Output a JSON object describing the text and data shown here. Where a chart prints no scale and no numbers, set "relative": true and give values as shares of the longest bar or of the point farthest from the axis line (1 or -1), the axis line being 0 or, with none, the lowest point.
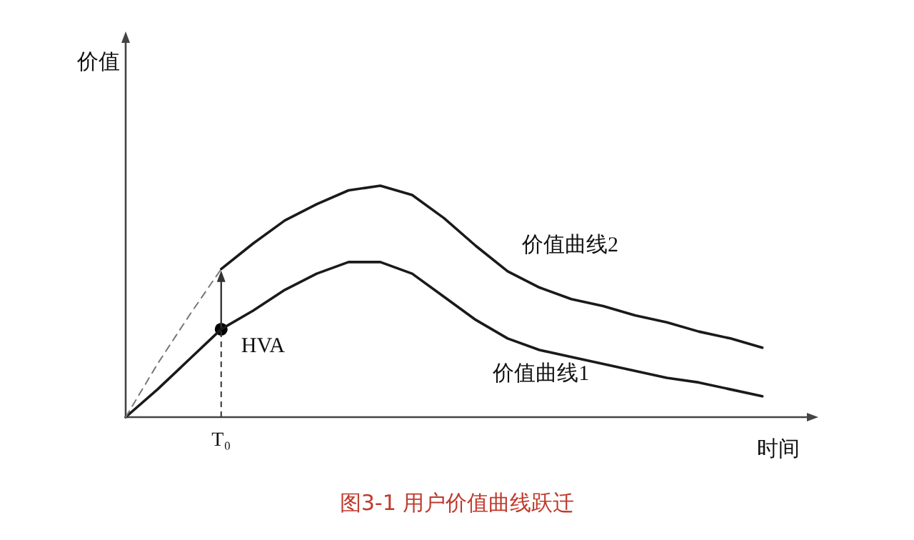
{
  "chart_data": {
    "type": "line",
    "relative": true,
    "title": "图3-1 用户价值曲线跃迁",
    "xlabel": "时间",
    "categories": [
      null,
      null,
      null,
      null,
      null,
      null,
      null,
      null,
      null,
      null,
      null,
      null,
      null,
      null,
      null,
      null,
      null,
      null,
      null,
      null,
      null
    ],
    "series": [
      {
        "name": "价值曲线1",
        "color": "#1a1a1a",
        "line_style": "solid",
        "values": [
          0,
          0.12,
          0.25,
          0.38,
          0.46,
          0.55,
          0.62,
          0.67,
          0.67,
          0.62,
          0.52,
          0.42,
          0.34,
          0.29,
          0.26,
          0.23,
          0.2,
          0.17,
          0.15,
          0.12,
          0.09
        ]
      },
      {
        "name": "价值曲线2",
        "color": "#1a1a1a",
        "line_style": "solid",
        "values": [
          null,
          null,
          null,
          0.64,
          0.75,
          0.85,
          0.92,
          0.98,
          1,
          0.96,
          0.86,
          0.74,
          0.63,
          0.56,
          0.51,
          0.48,
          0.44,
          0.41,
          0.37,
          0.34,
          0.3
        ]
      },
      {
        "color": "#777777",
        "line_style": "dashed",
        "values": [
          0,
          0.23,
          0.44,
          0.64,
          null,
          null,
          null,
          null,
          null,
          null,
          null,
          null,
          null,
          null,
          null,
          null,
          null,
          null,
          null,
          null,
          null
        ]
      }
    ],
    "annotations": [
      "HVA",
      "T₀",
      "价值"
    ]
  }
}
